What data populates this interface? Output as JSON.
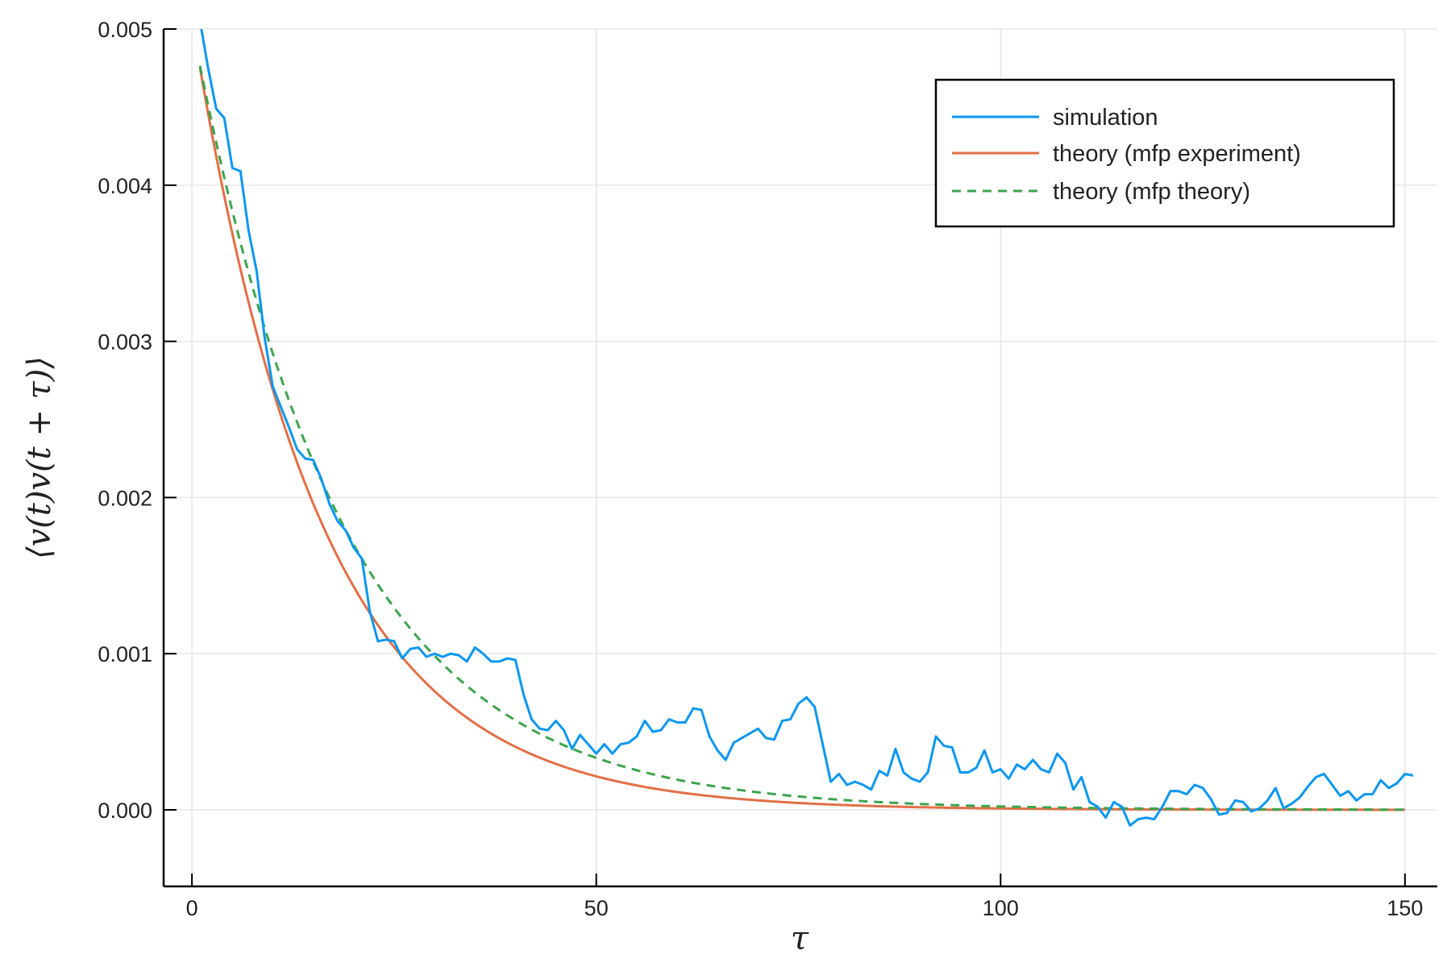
{
  "chart_data": {
    "type": "line",
    "xlabel": "τ",
    "ylabel": "⟨v(t)v(t + τ)⟩",
    "xlim": [
      -3.5,
      154
    ],
    "ylim": [
      -0.00049,
      0.005
    ],
    "x_ticks": [
      0,
      50,
      100,
      150
    ],
    "x_tick_labels": [
      "0",
      "50",
      "100",
      "150"
    ],
    "y_ticks": [
      0.0,
      0.001,
      0.002,
      0.003,
      0.004,
      0.005
    ],
    "y_tick_labels": [
      "0.000",
      "0.001",
      "0.002",
      "0.003",
      "0.004",
      "0.005"
    ],
    "grid": true,
    "legend_position": "top-right",
    "series": [
      {
        "name": "simulation",
        "color": "#0a97f0",
        "style": "solid",
        "x": [
          1,
          2,
          3,
          4,
          5,
          6,
          7,
          8,
          9,
          10,
          11,
          12,
          13,
          14,
          15,
          16,
          17,
          18,
          19,
          20,
          21,
          22,
          23,
          24,
          25,
          26,
          27,
          28,
          29,
          30,
          31,
          32,
          33,
          34,
          35,
          36,
          37,
          38,
          39,
          40,
          41,
          42,
          43,
          44,
          45,
          46,
          47,
          48,
          49,
          50,
          51,
          52,
          53,
          54,
          55,
          56,
          57,
          58,
          59,
          60,
          61,
          62,
          63,
          64,
          65,
          66,
          67,
          68,
          69,
          70,
          71,
          72,
          73,
          74,
          75,
          76,
          77,
          78,
          79,
          80,
          81,
          82,
          83,
          84,
          85,
          86,
          87,
          88,
          89,
          90,
          91,
          92,
          93,
          94,
          95,
          96,
          97,
          98,
          99,
          100,
          101,
          102,
          103,
          104,
          105,
          106,
          107,
          108,
          109,
          110,
          111,
          112,
          113,
          114,
          115,
          116,
          117,
          118,
          119,
          120,
          121,
          122,
          123,
          124,
          125,
          126,
          127,
          128,
          129,
          130,
          131,
          132,
          133,
          134,
          135,
          136,
          137,
          138,
          139,
          140,
          141,
          142,
          143,
          144,
          145,
          146,
          147,
          148,
          149,
          150,
          151
        ],
        "y": [
          0.00505,
          0.00475,
          0.00449,
          0.00443,
          0.00411,
          0.00409,
          0.00371,
          0.00345,
          0.00302,
          0.00271,
          0.00258,
          0.00245,
          0.00231,
          0.00225,
          0.00224,
          0.00212,
          0.00196,
          0.00185,
          0.00179,
          0.00168,
          0.00161,
          0.00127,
          0.00108,
          0.00109,
          0.00108,
          0.00097,
          0.00103,
          0.00104,
          0.00098,
          0.001,
          0.00098,
          0.001,
          0.00099,
          0.00095,
          0.00104,
          0.001,
          0.00095,
          0.00095,
          0.00097,
          0.00096,
          0.00074,
          0.00058,
          0.00052,
          0.00051,
          0.00057,
          0.00051,
          0.00039,
          0.00048,
          0.00042,
          0.00036,
          0.00042,
          0.00036,
          0.00042,
          0.00043,
          0.00047,
          0.00057,
          0.0005,
          0.00051,
          0.00058,
          0.00056,
          0.00056,
          0.00065,
          0.00064,
          0.00047,
          0.00038,
          0.00032,
          0.00043,
          0.00046,
          0.00049,
          0.00052,
          0.00046,
          0.00045,
          0.00057,
          0.00058,
          0.00068,
          0.00072,
          0.00066,
          0.00042,
          0.00018,
          0.00023,
          0.00016,
          0.00018,
          0.00016,
          0.00013,
          0.00025,
          0.00022,
          0.00039,
          0.00024,
          0.0002,
          0.00018,
          0.00024,
          0.00047,
          0.00041,
          0.0004,
          0.00024,
          0.00024,
          0.00027,
          0.00038,
          0.00024,
          0.00026,
          0.0002,
          0.00029,
          0.00026,
          0.00032,
          0.00026,
          0.00024,
          0.00036,
          0.0003,
          0.00013,
          0.00021,
          5e-05,
          2e-05,
          -5e-05,
          5e-05,
          2e-05,
          -0.0001,
          -6e-05,
          -5e-05,
          -6e-05,
          2e-05,
          0.00012,
          0.00012,
          0.0001,
          0.00016,
          0.00014,
          7e-05,
          -3e-05,
          -2e-05,
          6e-05,
          5e-05,
          -1e-05,
          1e-05,
          6e-05,
          0.00014,
          1e-05,
          4e-05,
          8e-05,
          0.00015,
          0.00021,
          0.00023,
          0.00016,
          9e-05,
          0.00012,
          6e-05,
          0.0001,
          0.0001,
          0.00019,
          0.00014,
          0.00017,
          0.00023,
          0.00022
        ]
      },
      {
        "name": "theory (mfp experiment)",
        "color": "#e26f46",
        "style": "solid",
        "fn": "exp",
        "amplitude": 0.00506,
        "decay": 0.0632,
        "x_start": 1,
        "x_end": 150
      },
      {
        "name": "theory (mfp theory)",
        "color": "#3da44d",
        "style": "dashed",
        "fn": "exp",
        "amplitude": 0.00503,
        "decay": 0.0543,
        "x_start": 1,
        "x_end": 150
      }
    ]
  }
}
